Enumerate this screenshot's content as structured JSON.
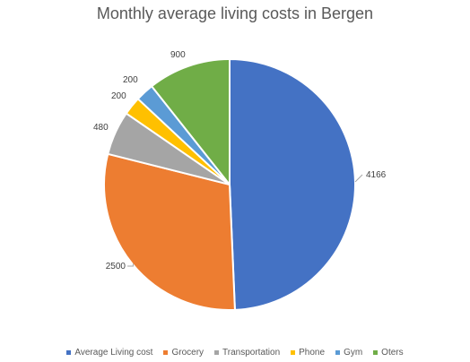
{
  "chart_data": {
    "type": "pie",
    "title": "Monthly average living costs in Bergen",
    "categories": [
      "Average Living cost",
      "Grocery",
      "Transportation",
      "Phone",
      "Gym",
      "Oters"
    ],
    "values": [
      4166,
      2500,
      480,
      200,
      200,
      900
    ],
    "colors": [
      "#4472c4",
      "#ed7d31",
      "#a5a5a5",
      "#ffc000",
      "#5b9bd5",
      "#70ad47"
    ],
    "data_labels": [
      "4166",
      "2500",
      "480",
      "200",
      "200",
      "900"
    ],
    "legend_position": "bottom",
    "start_angle_deg": 0,
    "direction": "clockwise"
  }
}
